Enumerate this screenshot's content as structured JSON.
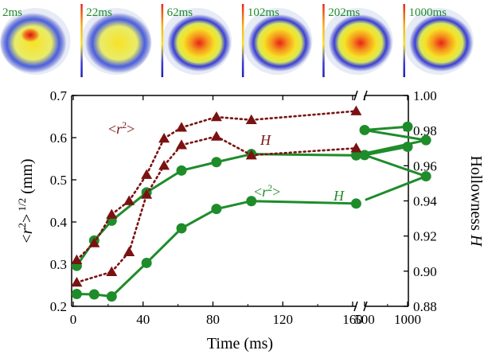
{
  "chart_data": {
    "type": "line",
    "panels": [
      {
        "label": "2ms"
      },
      {
        "label": "22ms"
      },
      {
        "label": "62ms"
      },
      {
        "label": "102ms"
      },
      {
        "label": "202ms"
      },
      {
        "label": "1000ms"
      }
    ],
    "xlabel": "Time (ms)",
    "ylabel_left": "<r2>1/2 (mm)",
    "ylabel_right": "Hollowness H",
    "x_ticks": [
      "0",
      "40",
      "80",
      "120",
      "160",
      "500",
      "1000"
    ],
    "y_left_ticks": [
      "0.2",
      "0.3",
      "0.4",
      "0.5",
      "0.6",
      "0.7"
    ],
    "y_right_ticks": [
      "0.88",
      "0.90",
      "0.92",
      "0.94",
      "0.96",
      "0.98",
      "1.00"
    ],
    "x_axis_break": "between 200 and 500 ms",
    "ylim_left": [
      0.2,
      0.7
    ],
    "ylim_right": [
      0.88,
      1.0
    ],
    "annotations": {
      "r2_dark": "<r2>",
      "H_dark": "H",
      "r2_green": "<r2>",
      "H_green": "H"
    },
    "colors": {
      "green": "#1e8c2a",
      "dark_red": "#7a1212"
    },
    "series": [
      {
        "name": "<r2>",
        "axis": "left",
        "color": "#1e8c2a",
        "marker": "circle",
        "linestyle": "solid",
        "x": [
          2,
          12,
          22,
          42,
          62,
          82,
          102,
          162,
          202,
          500,
          1000
        ],
        "y": [
          0.296,
          0.356,
          0.403,
          0.47,
          0.522,
          0.542,
          0.561,
          0.558,
          0.594,
          0.618,
          0.626
        ]
      },
      {
        "name": "H",
        "axis": "right",
        "color": "#1e8c2a",
        "marker": "circle",
        "linestyle": "solid",
        "x": [
          2,
          12,
          22,
          42,
          62,
          82,
          102,
          162,
          202,
          500,
          1000
        ],
        "y": [
          0.887,
          0.8868,
          0.8856,
          0.9047,
          0.9244,
          0.9354,
          0.9399,
          0.9385,
          0.954,
          0.9661,
          0.9708
        ]
      },
      {
        "name": "<r2>",
        "axis": "left",
        "color": "#7a1212",
        "marker": "triangle",
        "linestyle": "dotted",
        "x": [
          2,
          12,
          22,
          32,
          42,
          52,
          62,
          82,
          102,
          162
        ],
        "y": [
          0.31,
          0.35,
          0.418,
          0.45,
          0.512,
          0.598,
          0.624,
          0.649,
          0.642,
          0.663
        ]
      },
      {
        "name": "H",
        "axis": "right",
        "color": "#7a1212",
        "marker": "triangle",
        "linestyle": "dotted",
        "x": [
          2,
          22,
          32,
          42,
          52,
          62,
          82,
          102,
          162
        ],
        "y": [
          0.8936,
          0.8996,
          0.9109,
          0.9436,
          0.9601,
          0.9718,
          0.9767,
          0.966,
          0.97
        ]
      }
    ]
  }
}
